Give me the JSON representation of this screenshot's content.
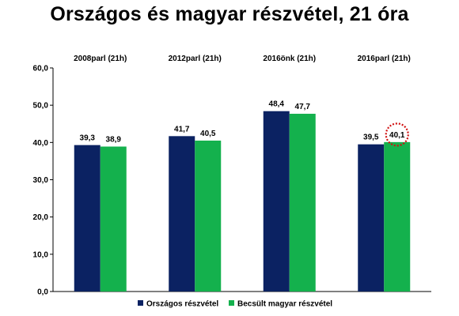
{
  "chart_data": {
    "type": "bar",
    "title": "Országos és magyar részvétel, 21 óra",
    "categories": [
      "2008parl (21h)",
      "2012parl (21h)",
      "2016önk (21h)",
      "2016parl (21h)"
    ],
    "series": [
      {
        "name": "Országos részvétel",
        "values": [
          39.3,
          41.7,
          48.4,
          39.5
        ],
        "labels": [
          "39,3",
          "41,7",
          "48,4",
          "39,5"
        ],
        "color": "#0b2262"
      },
      {
        "name": "Becsült magyar részvétel",
        "values": [
          38.9,
          40.5,
          47.7,
          40.1
        ],
        "labels": [
          "38,9",
          "40,5",
          "47,7",
          "40,1"
        ],
        "color": "#14b14d"
      }
    ],
    "highlight": {
      "series": 1,
      "category": 3,
      "style": "dotted-red-circle"
    },
    "yticks": [
      "0,0",
      "10,0",
      "20,0",
      "30,0",
      "40,0",
      "50,0",
      "60,0"
    ],
    "ylim": [
      0,
      60
    ],
    "xlabel": "",
    "ylabel": "",
    "grid": false,
    "legend_position": "bottom"
  }
}
